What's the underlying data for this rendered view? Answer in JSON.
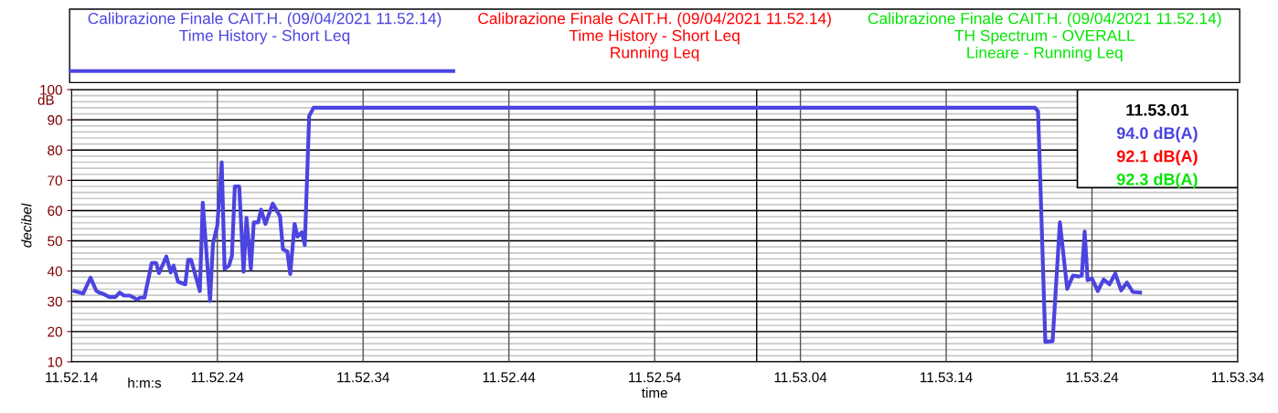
{
  "chart_data": {
    "type": "line",
    "ylabel": "decibel",
    "xlabel": "time",
    "annotations": [
      "dB",
      "h:m:s",
      "94.0 dB(A)",
      "92.1 dB(A)",
      "92.3 dB(A)"
    ],
    "series": [
      {
        "name": "Calibrazione Finale CAIT.H. (09/04/2021 11.52.14)\nTime History - Short Leq",
        "color": "#4b44e0",
        "x": [
          "2021-04-09T11:52:14.2",
          "2021-04-09T11:52:14.8",
          "2021-04-09T11:52:15.3",
          "2021-04-09T11:52:15.7",
          "2021-04-09T11:52:15.9",
          "2021-04-09T11:52:16.2",
          "2021-04-09T11:52:16.6",
          "2021-04-09T11:52:17.0",
          "2021-04-09T11:52:17.3",
          "2021-04-09T11:52:17.6",
          "2021-04-09T11:52:18.0",
          "2021-04-09T11:52:18.5",
          "2021-04-09T11:52:18.7",
          "2021-04-09T11:52:19.0",
          "2021-04-09T11:52:19.5",
          "2021-04-09T11:52:19.8",
          "2021-04-09T11:52:20.0",
          "2021-04-09T11:52:20.5",
          "2021-04-09T11:52:20.8",
          "2021-04-09T11:52:21.0",
          "2021-04-09T11:52:21.3",
          "2021-04-09T11:52:21.8",
          "2021-04-09T11:52:22.0",
          "2021-04-09T11:52:22.2",
          "2021-04-09T11:52:22.8",
          "2021-04-09T11:52:23.0",
          "2021-04-09T11:52:23.5",
          "2021-04-09T11:52:23.7",
          "2021-04-09T11:52:24.0",
          "2021-04-09T11:52:24.3",
          "2021-04-09T11:52:24.5",
          "2021-04-09T11:52:24.8",
          "2021-04-09T11:52:25.0",
          "2021-04-09T11:52:25.2",
          "2021-04-09T11:52:25.5",
          "2021-04-09T11:52:25.8",
          "2021-04-09T11:52:26.0",
          "2021-04-09T11:52:26.3",
          "2021-04-09T11:52:26.5",
          "2021-04-09T11:52:26.8",
          "2021-04-09T11:52:27.0",
          "2021-04-09T11:52:27.3",
          "2021-04-09T11:52:27.8",
          "2021-04-09T11:52:28.3",
          "2021-04-09T11:52:28.5",
          "2021-04-09T11:52:28.8",
          "2021-04-09T11:52:29.0",
          "2021-04-09T11:52:29.3",
          "2021-04-09T11:52:29.5",
          "2021-04-09T11:52:29.8",
          "2021-04-09T11:52:30.0",
          "2021-04-09T11:52:30.3",
          "2021-04-09T11:52:30.6",
          "2021-04-09T11:53:20.1",
          "2021-04-09T11:53:20.3",
          "2021-04-09T11:53:20.4",
          "2021-04-09T11:53:20.8",
          "2021-04-09T11:53:21.3",
          "2021-04-09T11:53:21.8",
          "2021-04-09T11:53:22.3",
          "2021-04-09T11:53:22.7",
          "2021-04-09T11:53:23.1",
          "2021-04-09T11:53:23.3",
          "2021-04-09T11:53:23.5",
          "2021-04-09T11:53:23.7",
          "2021-04-09T11:53:24.0",
          "2021-04-09T11:53:24.4",
          "2021-04-09T11:53:24.8",
          "2021-04-09T11:53:25.2",
          "2021-04-09T11:53:25.6",
          "2021-04-09T11:53:26.0",
          "2021-04-09T11:53:26.4",
          "2021-04-09T11:53:26.8",
          "2021-04-09T11:53:27.3"
        ],
        "values": [
          33.4,
          32.6,
          37.8,
          33.4,
          32.9,
          32.4,
          31.4,
          31.4,
          32.9,
          31.9,
          31.9,
          30.6,
          31.2,
          31.2,
          42.7,
          42.7,
          39.3,
          44.8,
          39.5,
          41.8,
          36.5,
          35.6,
          43.7,
          43.7,
          33.4,
          62.6,
          30.1,
          49.0,
          55.1,
          76.0,
          40.7,
          41.8,
          45.0,
          68.0,
          68.0,
          39.8,
          57.6,
          40.7,
          56.1,
          56.1,
          60.3,
          55.6,
          62.3,
          58.1,
          47.2,
          46.5,
          39.0,
          55.6,
          51.4,
          52.8,
          48.6,
          91.3,
          94.0,
          94.0,
          92.8,
          78.2,
          16.6,
          16.8,
          56.1,
          34.1,
          38.5,
          38.2,
          38.5,
          53.1,
          37.0,
          37.5,
          33.4,
          37.2,
          35.6,
          39.2,
          33.6,
          36.2,
          33.1,
          32.9
        ]
      },
      {
        "name": "Calibrazione Finale CAIT.H. (09/04/2021 11.52.14)\nTime History - Short Leq\nRunning Leq",
        "color": "#ff0000"
      },
      {
        "name": "Calibrazione Finale CAIT.H. (09/04/2021 11.52.14)\nTH Spectrum - OVERALL\nLineare - Running Leq",
        "color": "#00e600"
      }
    ],
    "xlim": [
      "2021-04-09T11:52:14",
      "2021-04-09T11:53:34"
    ],
    "xticks": [
      {
        "value": "2021-04-09T11:52:14",
        "label": "11.52.14"
      },
      {
        "value": "2021-04-09T11:52:24",
        "label": "11.52.24"
      },
      {
        "value": "2021-04-09T11:52:34",
        "label": "11.52.34"
      },
      {
        "value": "2021-04-09T11:52:44",
        "label": "11.52.44"
      },
      {
        "value": "2021-04-09T11:52:54",
        "label": "11.52.54"
      },
      {
        "value": "2021-04-09T11:53:04",
        "label": "11.53.04"
      },
      {
        "value": "2021-04-09T11:53:14",
        "label": "11.53.14"
      },
      {
        "value": "2021-04-09T11:53:24",
        "label": "11.53.24"
      },
      {
        "value": "2021-04-09T11:53:34",
        "label": "11.53.34"
      }
    ],
    "ylim": [
      10,
      100
    ],
    "yticks": [
      10,
      20,
      30,
      40,
      50,
      60,
      70,
      80,
      90,
      100
    ],
    "ref_lines": [
      {
        "axis": "x",
        "value": "2021-04-09T11:53:01",
        "label": "11.53.01",
        "color": "#000000"
      }
    ],
    "grid": true,
    "legend": "top",
    "marker": "none",
    "line_style": "solid"
  }
}
